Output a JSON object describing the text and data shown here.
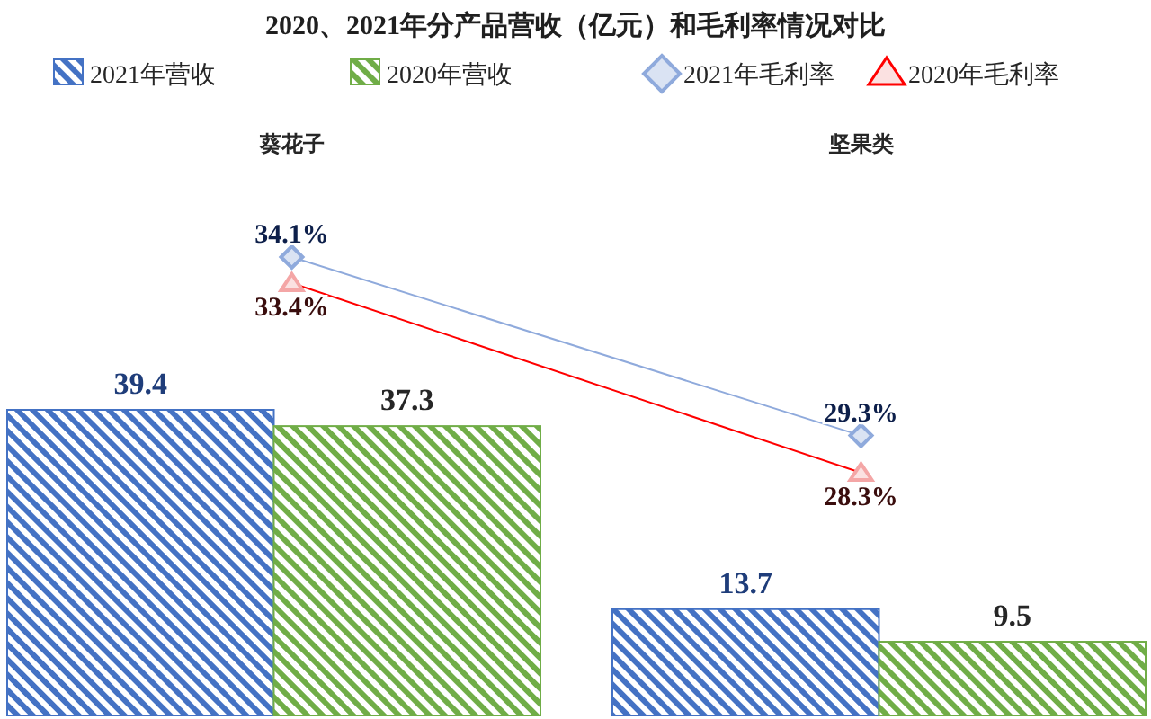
{
  "chart_data": {
    "type": "bar",
    "title": "2020、2021年分产品营收（亿元）和毛利率情况对比",
    "categories": [
      "葵花子",
      "坚果类"
    ],
    "legend": "top",
    "grid": false,
    "series": [
      {
        "name": "2021年营收",
        "color": "#4472c4",
        "values": [
          39.4,
          13.7
        ],
        "value_labels": [
          "39.4",
          "13.7"
        ]
      },
      {
        "name": "2020年营收",
        "color": "#70ad47",
        "values": [
          37.3,
          9.5
        ],
        "value_labels": [
          "37.3",
          "9.5"
        ]
      },
      {
        "name": "2021年毛利率",
        "type": "line",
        "axis": "y2",
        "marker": "diamond",
        "color": "#8faadc",
        "values": [
          34.1,
          29.3
        ],
        "value_labels": [
          "34.1%",
          "29.3%"
        ]
      },
      {
        "name": "2020年毛利率",
        "type": "line",
        "axis": "y2",
        "marker": "triangle",
        "color": "#ff0000",
        "values": [
          33.4,
          28.3
        ],
        "value_labels": [
          "33.4%",
          "28.3%"
        ]
      }
    ]
  }
}
